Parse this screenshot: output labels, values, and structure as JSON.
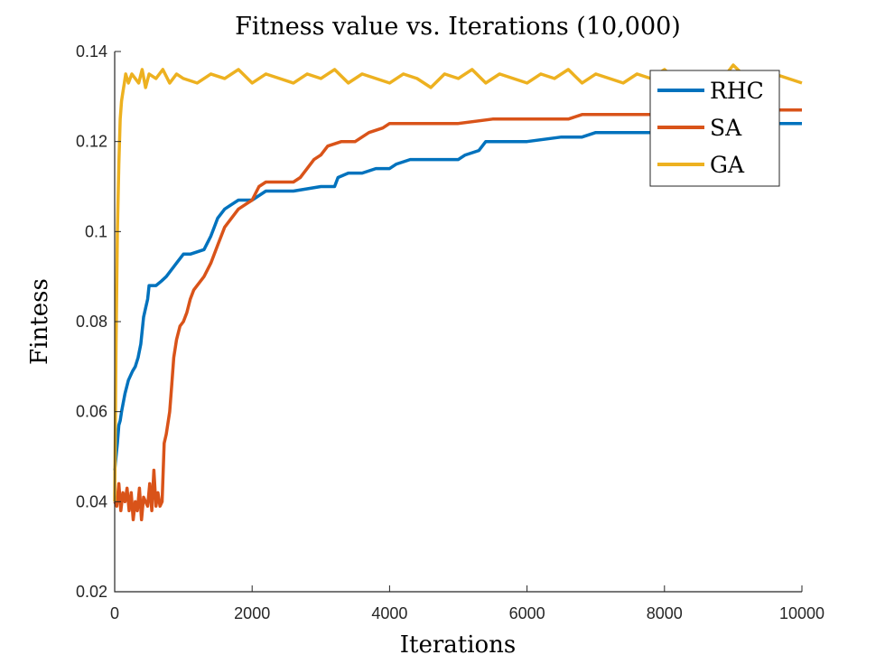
{
  "chart_data": {
    "type": "line",
    "title": "Fitness value vs. Iterations (10,000)",
    "xlabel": "Iterations",
    "ylabel": "Fintess",
    "xlim": [
      0,
      10000
    ],
    "ylim": [
      0.02,
      0.14
    ],
    "xticks": [
      0,
      2000,
      4000,
      6000,
      8000,
      10000
    ],
    "xtick_labels": [
      "0",
      "2000",
      "4000",
      "6000",
      "8000",
      "10000"
    ],
    "yticks": [
      0.02,
      0.04,
      0.06,
      0.08,
      0.1,
      0.12,
      0.14
    ],
    "ytick_labels": [
      "0.02",
      "0.04",
      "0.06",
      "0.08",
      "0.1",
      "0.12",
      "0.14"
    ],
    "grid": false,
    "legend_position": "top-right",
    "series": [
      {
        "name": "RHC",
        "color": "#0072BD",
        "x": [
          0,
          20,
          40,
          60,
          80,
          100,
          150,
          200,
          260,
          300,
          340,
          380,
          420,
          450,
          480,
          500,
          530,
          560,
          600,
          680,
          750,
          800,
          900,
          1000,
          1100,
          1300,
          1400,
          1450,
          1500,
          1600,
          1700,
          1800,
          2000,
          2100,
          2200,
          2400,
          2600,
          3000,
          3200,
          3250,
          3400,
          3600,
          3800,
          4000,
          4100,
          4300,
          4500,
          4800,
          5000,
          5100,
          5300,
          5400,
          5700,
          6000,
          6500,
          6800,
          7000,
          7500,
          8000,
          8500,
          9000,
          10000
        ],
        "y": [
          0.047,
          0.05,
          0.053,
          0.057,
          0.058,
          0.06,
          0.064,
          0.067,
          0.069,
          0.07,
          0.072,
          0.075,
          0.081,
          0.083,
          0.085,
          0.088,
          0.088,
          0.088,
          0.088,
          0.089,
          0.09,
          0.091,
          0.093,
          0.095,
          0.095,
          0.096,
          0.099,
          0.101,
          0.103,
          0.105,
          0.106,
          0.107,
          0.107,
          0.108,
          0.109,
          0.109,
          0.109,
          0.11,
          0.11,
          0.112,
          0.113,
          0.113,
          0.114,
          0.114,
          0.115,
          0.116,
          0.116,
          0.116,
          0.116,
          0.117,
          0.118,
          0.12,
          0.12,
          0.12,
          0.121,
          0.121,
          0.122,
          0.122,
          0.122,
          0.123,
          0.124,
          0.124
        ]
      },
      {
        "name": "SA",
        "color": "#D95319",
        "x": [
          0,
          30,
          60,
          90,
          120,
          150,
          180,
          210,
          240,
          270,
          300,
          330,
          360,
          390,
          420,
          450,
          480,
          510,
          540,
          570,
          600,
          630,
          660,
          690,
          720,
          750,
          780,
          800,
          830,
          860,
          900,
          950,
          1000,
          1050,
          1100,
          1150,
          1200,
          1300,
          1400,
          1500,
          1600,
          1700,
          1800,
          1900,
          2000,
          2100,
          2200,
          2400,
          2600,
          2700,
          2800,
          2900,
          3000,
          3100,
          3300,
          3500,
          3700,
          3900,
          4000,
          4500,
          5000,
          5500,
          6000,
          6500,
          6600,
          6800,
          7000,
          7500,
          8000,
          8200,
          8500,
          9000,
          10000
        ],
        "y": [
          0.04,
          0.039,
          0.044,
          0.038,
          0.042,
          0.04,
          0.043,
          0.038,
          0.042,
          0.036,
          0.04,
          0.038,
          0.043,
          0.036,
          0.041,
          0.04,
          0.039,
          0.044,
          0.038,
          0.047,
          0.039,
          0.042,
          0.039,
          0.04,
          0.053,
          0.055,
          0.058,
          0.06,
          0.066,
          0.072,
          0.076,
          0.079,
          0.08,
          0.082,
          0.085,
          0.087,
          0.088,
          0.09,
          0.093,
          0.097,
          0.101,
          0.103,
          0.105,
          0.106,
          0.107,
          0.11,
          0.111,
          0.111,
          0.111,
          0.112,
          0.114,
          0.116,
          0.117,
          0.119,
          0.12,
          0.12,
          0.122,
          0.123,
          0.124,
          0.124,
          0.124,
          0.125,
          0.125,
          0.125,
          0.125,
          0.126,
          0.126,
          0.126,
          0.126,
          0.127,
          0.127,
          0.127,
          0.127
        ]
      },
      {
        "name": "GA",
        "color": "#EDB120",
        "x": [
          0,
          20,
          40,
          60,
          80,
          100,
          120,
          140,
          160,
          180,
          200,
          250,
          300,
          350,
          400,
          450,
          500,
          600,
          700,
          800,
          900,
          1000,
          1200,
          1400,
          1600,
          1800,
          2000,
          2200,
          2400,
          2600,
          2800,
          3000,
          3200,
          3400,
          3600,
          3800,
          4000,
          4200,
          4400,
          4600,
          4800,
          5000,
          5200,
          5400,
          5600,
          5800,
          6000,
          6200,
          6400,
          6600,
          6800,
          7000,
          7200,
          7400,
          7600,
          7800,
          8000,
          8200,
          8400,
          8600,
          8800,
          9000,
          9200,
          9400,
          9600,
          9800,
          10000
        ],
        "y": [
          0.04,
          0.075,
          0.1,
          0.115,
          0.125,
          0.129,
          0.131,
          0.133,
          0.135,
          0.134,
          0.133,
          0.135,
          0.134,
          0.133,
          0.136,
          0.132,
          0.135,
          0.134,
          0.136,
          0.133,
          0.135,
          0.134,
          0.133,
          0.135,
          0.134,
          0.136,
          0.133,
          0.135,
          0.134,
          0.133,
          0.135,
          0.134,
          0.136,
          0.133,
          0.135,
          0.134,
          0.133,
          0.135,
          0.134,
          0.132,
          0.135,
          0.134,
          0.136,
          0.133,
          0.135,
          0.134,
          0.133,
          0.135,
          0.134,
          0.136,
          0.133,
          0.135,
          0.134,
          0.133,
          0.135,
          0.134,
          0.136,
          0.133,
          0.135,
          0.134,
          0.133,
          0.137,
          0.134,
          0.133,
          0.135,
          0.134,
          0.133
        ]
      }
    ]
  }
}
